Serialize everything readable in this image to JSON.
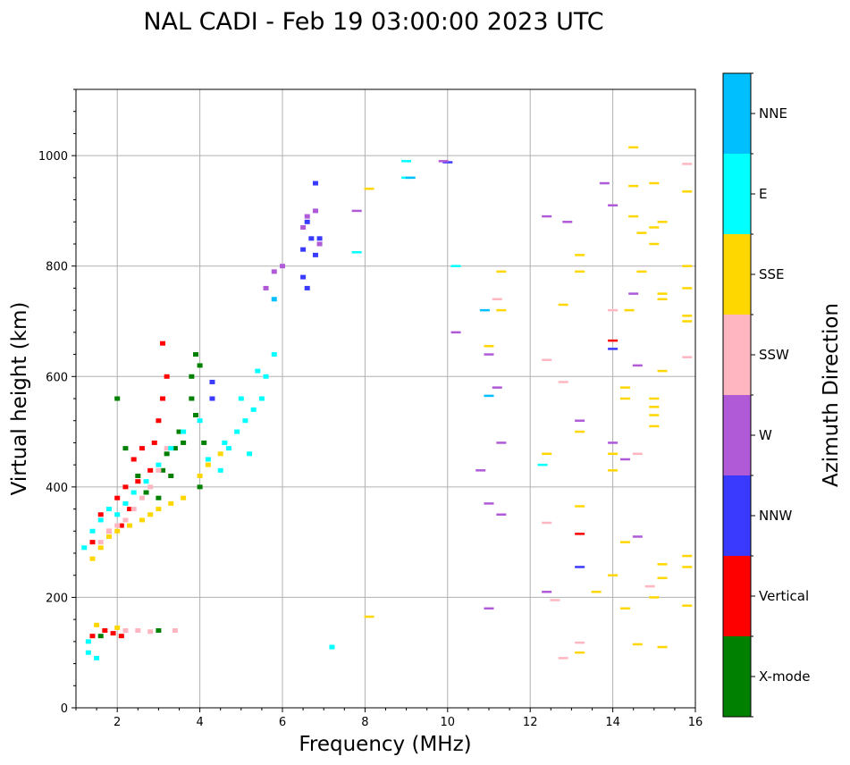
{
  "chart_data": {
    "type": "scatter",
    "title": "NAL CADI - Feb 19 03:00:00 2023 UTC",
    "xlabel": "Frequency (MHz)",
    "ylabel": "Virtual height (km)",
    "xlim": [
      1,
      16
    ],
    "ylim": [
      0,
      1120
    ],
    "xticks": [
      2,
      4,
      6,
      8,
      10,
      12,
      14,
      16
    ],
    "yticks": [
      0,
      200,
      400,
      600,
      800,
      1000
    ],
    "grid": true,
    "colorbar": {
      "label": "Azimuth Direction",
      "categories": [
        {
          "name": "X-mode",
          "color": "#008000"
        },
        {
          "name": "Vertical",
          "color": "#ff0000"
        },
        {
          "name": "NNW",
          "color": "#3a3aff"
        },
        {
          "name": "W",
          "color": "#b05ad8"
        },
        {
          "name": "SSW",
          "color": "#ffb6c1"
        },
        {
          "name": "SSE",
          "color": "#ffd700"
        },
        {
          "name": "E",
          "color": "#00ffff"
        },
        {
          "name": "NNE",
          "color": "#00bfff"
        }
      ]
    },
    "series": [
      {
        "name": "X-mode",
        "points": [
          [
            2.0,
            560
          ],
          [
            2.2,
            470
          ],
          [
            2.5,
            420
          ],
          [
            2.7,
            390
          ],
          [
            3.0,
            380
          ],
          [
            3.1,
            430
          ],
          [
            3.2,
            460
          ],
          [
            3.3,
            420
          ],
          [
            3.4,
            470
          ],
          [
            3.5,
            500
          ],
          [
            3.6,
            480
          ],
          [
            3.8,
            560
          ],
          [
            3.8,
            600
          ],
          [
            3.9,
            640
          ],
          [
            4.0,
            620
          ],
          [
            4.1,
            480
          ],
          [
            3.9,
            530
          ],
          [
            3.0,
            140
          ],
          [
            1.6,
            130
          ],
          [
            4.0,
            400
          ]
        ]
      },
      {
        "name": "Vertical",
        "points": [
          [
            1.4,
            300
          ],
          [
            1.6,
            350
          ],
          [
            1.8,
            320
          ],
          [
            2.0,
            380
          ],
          [
            2.1,
            330
          ],
          [
            2.2,
            400
          ],
          [
            2.3,
            360
          ],
          [
            2.4,
            450
          ],
          [
            2.5,
            410
          ],
          [
            2.6,
            470
          ],
          [
            2.8,
            430
          ],
          [
            2.9,
            480
          ],
          [
            3.0,
            520
          ],
          [
            3.1,
            560
          ],
          [
            3.1,
            660
          ],
          [
            3.2,
            600
          ],
          [
            1.4,
            130
          ],
          [
            1.7,
            140
          ],
          [
            1.9,
            135
          ],
          [
            2.1,
            130
          ],
          [
            14.0,
            665
          ],
          [
            13.2,
            315
          ]
        ]
      },
      {
        "name": "NNW",
        "points": [
          [
            4.3,
            590
          ],
          [
            4.3,
            560
          ],
          [
            6.5,
            830
          ],
          [
            6.6,
            880
          ],
          [
            6.7,
            850
          ],
          [
            6.8,
            820
          ],
          [
            6.5,
            780
          ],
          [
            6.6,
            760
          ],
          [
            6.9,
            850
          ],
          [
            10.0,
            988
          ],
          [
            13.2,
            255
          ],
          [
            14.0,
            650
          ],
          [
            6.8,
            950
          ]
        ]
      },
      {
        "name": "W",
        "points": [
          [
            5.6,
            760
          ],
          [
            5.8,
            790
          ],
          [
            6.0,
            800
          ],
          [
            6.5,
            870
          ],
          [
            6.6,
            890
          ],
          [
            6.8,
            900
          ],
          [
            6.9,
            840
          ],
          [
            7.8,
            900
          ],
          [
            9.9,
            990
          ],
          [
            10.2,
            680
          ],
          [
            11.0,
            640
          ],
          [
            11.2,
            580
          ],
          [
            11.3,
            480
          ],
          [
            10.8,
            430
          ],
          [
            11.0,
            370
          ],
          [
            11.3,
            350
          ],
          [
            12.4,
            890
          ],
          [
            12.9,
            880
          ],
          [
            13.2,
            520
          ],
          [
            14.3,
            450
          ],
          [
            14.6,
            620
          ],
          [
            14.5,
            750
          ],
          [
            13.8,
            950
          ],
          [
            14.0,
            910
          ],
          [
            14.0,
            480
          ],
          [
            14.6,
            310
          ],
          [
            12.4,
            210
          ],
          [
            11.0,
            180
          ]
        ]
      },
      {
        "name": "SSW",
        "points": [
          [
            1.6,
            300
          ],
          [
            1.8,
            320
          ],
          [
            2.0,
            330
          ],
          [
            2.2,
            340
          ],
          [
            2.4,
            360
          ],
          [
            2.6,
            380
          ],
          [
            2.8,
            400
          ],
          [
            3.0,
            430
          ],
          [
            3.2,
            470
          ],
          [
            2.2,
            140
          ],
          [
            2.5,
            140
          ],
          [
            2.8,
            138
          ],
          [
            3.4,
            140
          ],
          [
            12.4,
            630
          ],
          [
            12.8,
            590
          ],
          [
            12.6,
            195
          ],
          [
            13.2,
            118
          ],
          [
            14.0,
            720
          ],
          [
            14.6,
            460
          ],
          [
            14.9,
            220
          ],
          [
            15.8,
            985
          ],
          [
            15.8,
            635
          ],
          [
            12.4,
            335
          ],
          [
            11.2,
            740
          ],
          [
            12.8,
            90
          ]
        ]
      },
      {
        "name": "SSE",
        "points": [
          [
            1.4,
            270
          ],
          [
            1.6,
            290
          ],
          [
            1.8,
            310
          ],
          [
            2.0,
            320
          ],
          [
            2.3,
            330
          ],
          [
            2.6,
            340
          ],
          [
            2.8,
            350
          ],
          [
            3.0,
            360
          ],
          [
            3.3,
            370
          ],
          [
            3.6,
            380
          ],
          [
            4.0,
            420
          ],
          [
            4.2,
            440
          ],
          [
            4.5,
            460
          ],
          [
            1.5,
            150
          ],
          [
            2.0,
            145
          ],
          [
            8.1,
            165
          ],
          [
            8.1,
            940
          ],
          [
            11.0,
            655
          ],
          [
            11.3,
            720
          ],
          [
            11.3,
            790
          ],
          [
            12.4,
            460
          ],
          [
            12.8,
            730
          ],
          [
            13.2,
            820
          ],
          [
            13.2,
            790
          ],
          [
            13.2,
            500
          ],
          [
            13.2,
            365
          ],
          [
            13.2,
            100
          ],
          [
            13.6,
            210
          ],
          [
            14.0,
            240
          ],
          [
            14.0,
            460
          ],
          [
            14.0,
            430
          ],
          [
            14.3,
            580
          ],
          [
            14.3,
            560
          ],
          [
            14.3,
            300
          ],
          [
            14.3,
            180
          ],
          [
            14.5,
            1015
          ],
          [
            14.5,
            945
          ],
          [
            14.5,
            890
          ],
          [
            14.7,
            860
          ],
          [
            14.7,
            790
          ],
          [
            15.0,
            950
          ],
          [
            15.0,
            870
          ],
          [
            15.0,
            840
          ],
          [
            15.0,
            560
          ],
          [
            15.0,
            530
          ],
          [
            15.0,
            545
          ],
          [
            15.0,
            510
          ],
          [
            15.0,
            200
          ],
          [
            15.2,
            880
          ],
          [
            15.2,
            750
          ],
          [
            15.2,
            740
          ],
          [
            15.2,
            610
          ],
          [
            15.2,
            235
          ],
          [
            15.2,
            260
          ],
          [
            15.2,
            110
          ],
          [
            15.8,
            935
          ],
          [
            15.8,
            800
          ],
          [
            15.8,
            760
          ],
          [
            15.8,
            710
          ],
          [
            15.8,
            700
          ],
          [
            15.8,
            275
          ],
          [
            15.8,
            255
          ],
          [
            15.8,
            185
          ],
          [
            14.4,
            720
          ],
          [
            14.6,
            115
          ]
        ]
      },
      {
        "name": "E",
        "points": [
          [
            1.2,
            290
          ],
          [
            1.4,
            320
          ],
          [
            1.6,
            340
          ],
          [
            1.8,
            360
          ],
          [
            2.0,
            350
          ],
          [
            2.2,
            370
          ],
          [
            2.4,
            390
          ],
          [
            2.7,
            410
          ],
          [
            3.0,
            440
          ],
          [
            3.3,
            470
          ],
          [
            3.6,
            500
          ],
          [
            4.0,
            520
          ],
          [
            4.2,
            450
          ],
          [
            4.5,
            430
          ],
          [
            4.7,
            470
          ],
          [
            4.9,
            500
          ],
          [
            5.1,
            520
          ],
          [
            5.3,
            540
          ],
          [
            5.5,
            560
          ],
          [
            5.6,
            600
          ],
          [
            5.8,
            640
          ],
          [
            5.0,
            560
          ],
          [
            5.4,
            610
          ],
          [
            4.6,
            480
          ],
          [
            5.2,
            460
          ],
          [
            1.3,
            100
          ],
          [
            1.5,
            90
          ],
          [
            1.3,
            120
          ],
          [
            7.2,
            110
          ],
          [
            7.8,
            825
          ],
          [
            9.0,
            990
          ],
          [
            9.0,
            960
          ],
          [
            10.2,
            800
          ],
          [
            12.3,
            440
          ]
        ]
      },
      {
        "name": "NNE",
        "points": [
          [
            10.9,
            720
          ],
          [
            11.0,
            565
          ],
          [
            9.1,
            960
          ],
          [
            5.8,
            740
          ]
        ]
      }
    ]
  }
}
